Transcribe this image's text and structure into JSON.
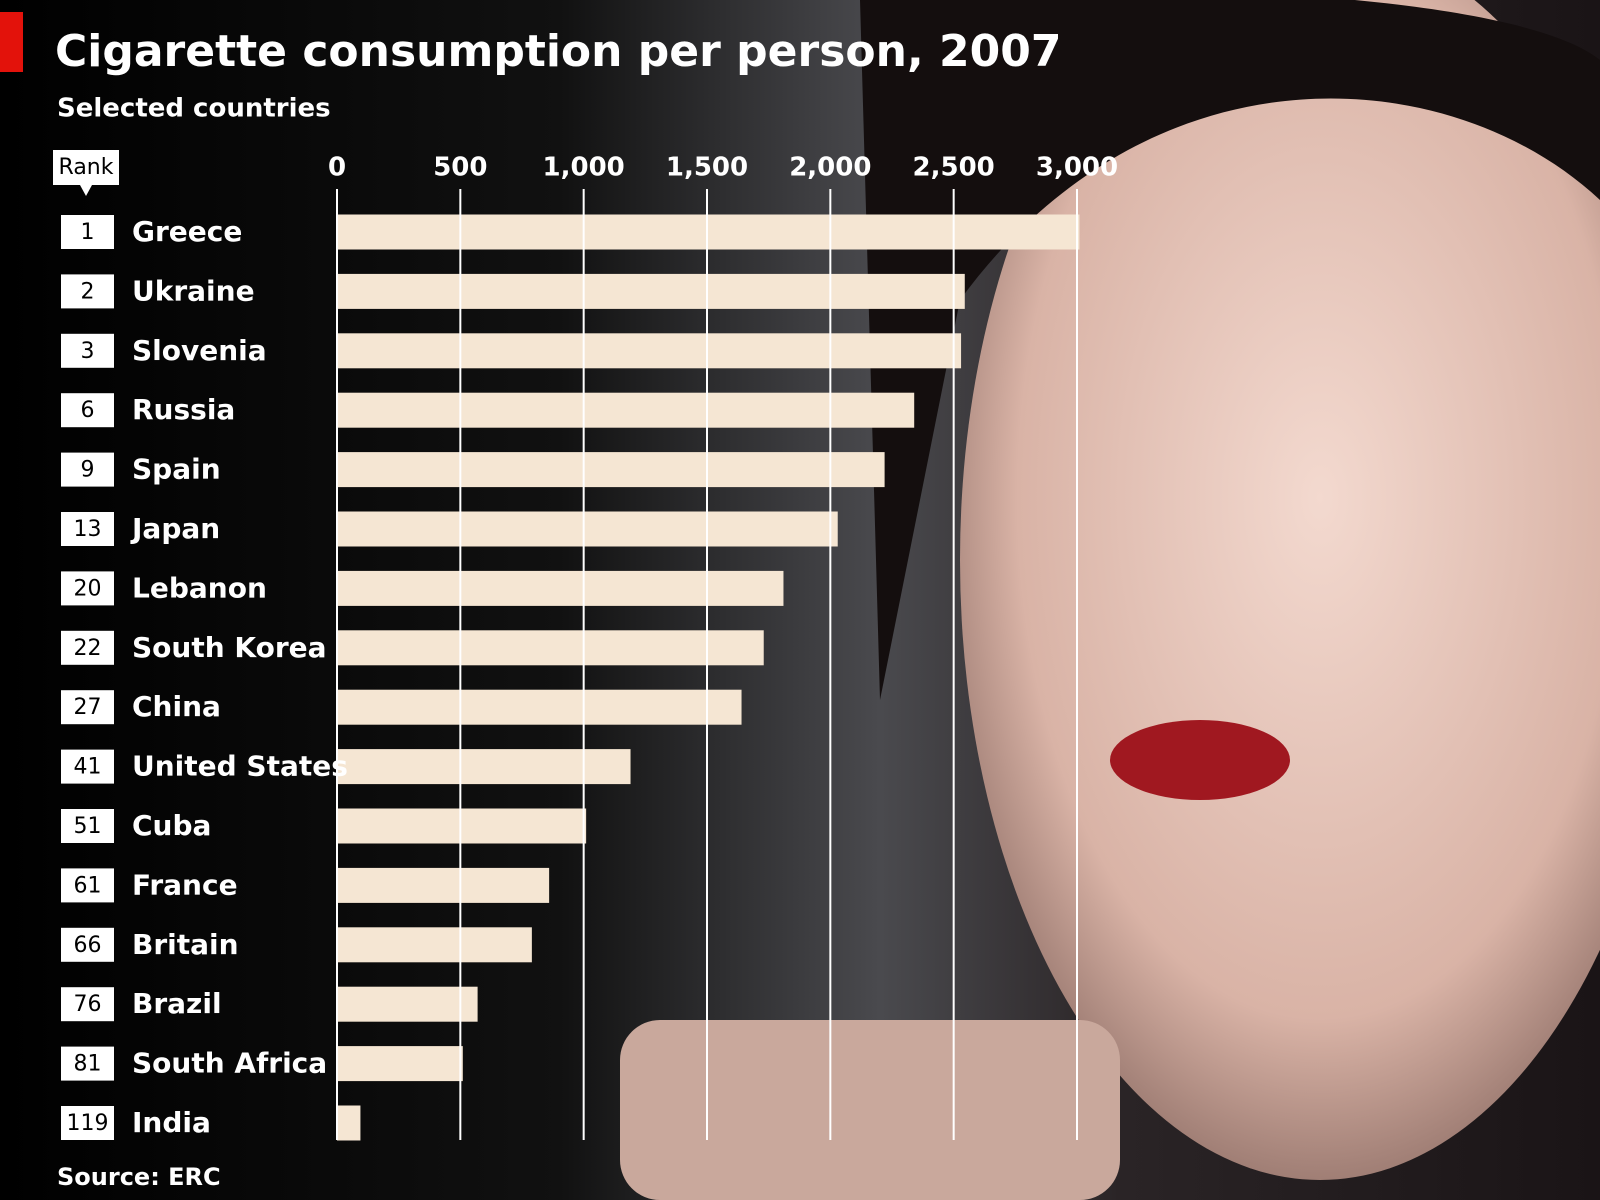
{
  "chart_data": {
    "type": "bar",
    "orientation": "horizontal",
    "title": "Cigarette consumption per person, 2007",
    "subtitle": "Selected countries",
    "rank_label": "Rank",
    "source": "Source: ERC",
    "categories": [
      "Greece",
      "Ukraine",
      "Slovenia",
      "Russia",
      "Spain",
      "Japan",
      "Lebanon",
      "South Korea",
      "China",
      "United States",
      "Cuba",
      "France",
      "Britain",
      "Brazil",
      "South Africa",
      "India"
    ],
    "ranks": [
      1,
      2,
      3,
      6,
      9,
      13,
      20,
      22,
      27,
      41,
      51,
      61,
      66,
      76,
      81,
      119
    ],
    "values": [
      3010,
      2545,
      2530,
      2340,
      2220,
      2030,
      1810,
      1730,
      1640,
      1190,
      1010,
      860,
      790,
      570,
      510,
      95
    ],
    "color": "#f5e6d3",
    "xlim": [
      0,
      3000
    ],
    "xticks": [
      0,
      500,
      {
        "value": 1000,
        "label": "1,000"
      },
      {
        "value": 1500,
        "label": "1,500"
      },
      {
        "value": 2000,
        "label": "2,000"
      },
      {
        "value": 2500,
        "label": "2,500"
      },
      {
        "value": 3000,
        "label": "3,000"
      }
    ],
    "grid": true
  }
}
